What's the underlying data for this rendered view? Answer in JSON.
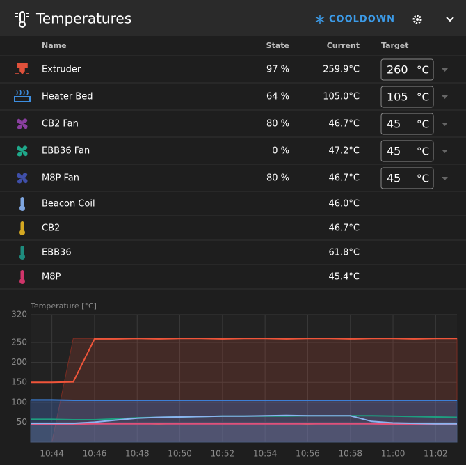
{
  "header": {
    "title": "Temperatures",
    "cooldown": "COOLDOWN"
  },
  "table": {
    "columns": [
      "Name",
      "State",
      "Current",
      "Target"
    ],
    "rows": [
      {
        "name": "Extruder",
        "state": "97 %",
        "current": "259.9°C",
        "target": "260",
        "unit": "°C",
        "icon": "extruder",
        "color": "#e0513b"
      },
      {
        "name": "Heater Bed",
        "state": "64 %",
        "current": "105.0°C",
        "target": "105",
        "unit": "°C",
        "icon": "bed",
        "color": "#3d8ee0"
      },
      {
        "name": "CB2 Fan",
        "state": "80 %",
        "current": "46.7°C",
        "target": "45",
        "unit": "°C",
        "icon": "fan",
        "color": "#8a3fa0"
      },
      {
        "name": "EBB36 Fan",
        "state": "0 %",
        "current": "47.2°C",
        "target": "45",
        "unit": "°C",
        "icon": "fan",
        "color": "#1fa88a"
      },
      {
        "name": "M8P Fan",
        "state": "80 %",
        "current": "46.7°C",
        "target": "45",
        "unit": "°C",
        "icon": "fan",
        "color": "#3f4fa8"
      },
      {
        "name": "Beacon Coil",
        "current": "46.0°C",
        "icon": "thermometer",
        "color": "#7fa6e0"
      },
      {
        "name": "CB2",
        "current": "46.7°C",
        "icon": "thermometer",
        "color": "#d4a822"
      },
      {
        "name": "EBB36",
        "current": "61.8°C",
        "icon": "thermometer",
        "color": "#1e8c7e"
      },
      {
        "name": "M8P",
        "current": "45.4°C",
        "icon": "thermometer",
        "color": "#d0356a"
      }
    ]
  },
  "chart_data": {
    "type": "line",
    "ylabel": "Temperature [°C]",
    "x": [
      "10:43",
      "10:44",
      "10:45",
      "10:46",
      "10:47",
      "10:48",
      "10:49",
      "10:50",
      "10:51",
      "10:52",
      "10:53",
      "10:54",
      "10:55",
      "10:56",
      "10:57",
      "10:58",
      "10:59",
      "11:00",
      "11:01",
      "11:02",
      "11:03"
    ],
    "xlim": [
      "10:43",
      "11:03"
    ],
    "xticks": [
      "10:44",
      "10:46",
      "10:48",
      "10:50",
      "10:52",
      "10:54",
      "10:56",
      "10:58",
      "11:00",
      "11:02"
    ],
    "ylim": [
      0,
      320
    ],
    "yticks": [
      50,
      100,
      150,
      200,
      250,
      320
    ],
    "grid": true,
    "series": [
      {
        "color": "#7a2c22",
        "fill": "rgba(224,81,59,0.18)",
        "values": [
          0,
          0,
          260,
          260,
          260,
          260,
          260,
          260,
          260,
          260,
          260,
          260,
          260,
          260,
          260,
          260,
          260,
          260,
          260,
          260,
          260
        ]
      },
      {
        "color": "#2f4a78",
        "fill": "rgba(70,110,190,0.35)",
        "values": [
          105,
          105,
          105,
          105,
          105,
          105,
          105,
          105,
          105,
          105,
          105,
          105,
          105,
          105,
          105,
          105,
          105,
          105,
          105,
          105,
          105
        ]
      },
      {
        "color": "#4a5a7a",
        "fill": "rgba(120,140,180,0.25)",
        "values": [
          45,
          45,
          45,
          45,
          45,
          45,
          45,
          45,
          45,
          45,
          45,
          45,
          45,
          45,
          45,
          45,
          45,
          45,
          45,
          45,
          45
        ]
      },
      {
        "color": "#3d7fd6",
        "values": [
          106,
          106,
          105,
          105,
          105,
          105,
          105,
          105,
          105,
          105,
          105,
          105,
          105,
          105,
          105,
          105,
          105,
          105,
          105,
          105,
          105
        ]
      },
      {
        "color": "#ef553a",
        "values": [
          150,
          150,
          151,
          259,
          259,
          260,
          259,
          260,
          260,
          259,
          260,
          260,
          259,
          260,
          260,
          259,
          260,
          260,
          259,
          260,
          260
        ]
      },
      {
        "color": "#1e9e80",
        "values": [
          57,
          57,
          56,
          56,
          58,
          61,
          62,
          63,
          64,
          65,
          65,
          65,
          65,
          66,
          66,
          66,
          66,
          65,
          64,
          63,
          62
        ]
      },
      {
        "color": "#d4b030",
        "values": [
          47,
          47,
          47,
          47,
          47,
          47,
          46,
          47,
          47,
          47,
          47,
          47,
          47,
          46,
          47,
          47,
          47,
          47,
          47,
          47,
          47
        ]
      },
      {
        "color": "#e0507a",
        "values": [
          45,
          45,
          45,
          46,
          46,
          46,
          46,
          46,
          46,
          46,
          46,
          46,
          46,
          46,
          46,
          46,
          46,
          45,
          45,
          45,
          45
        ]
      },
      {
        "color": "#8ab4f0",
        "values": [
          47,
          47,
          47,
          50,
          55,
          60,
          62,
          63,
          64,
          65,
          65,
          66,
          67,
          66,
          66,
          66,
          52,
          48,
          47,
          46,
          46
        ]
      }
    ]
  }
}
